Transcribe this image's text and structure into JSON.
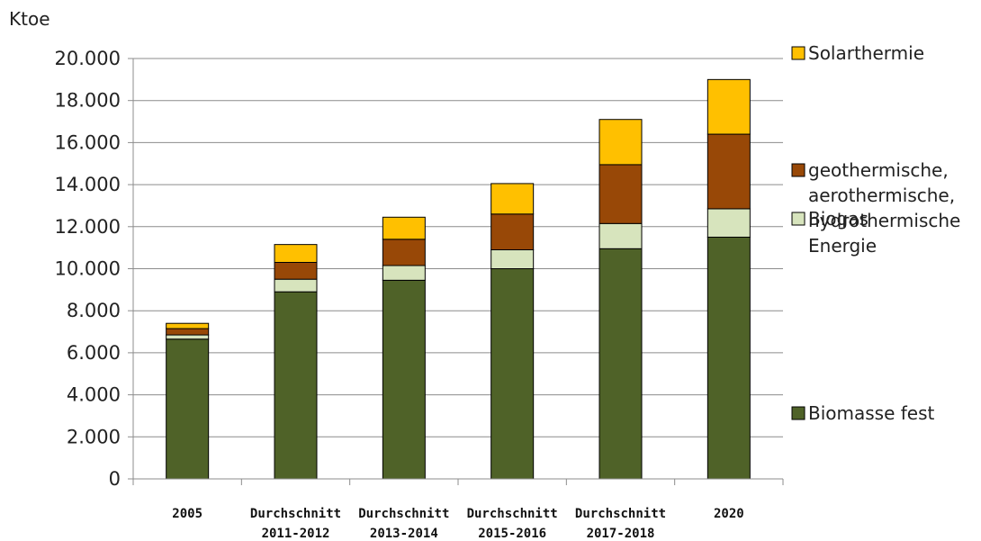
{
  "chart_data": {
    "type": "bar",
    "stacked": true,
    "unit_label": "Ktoe",
    "categories": [
      [
        "2005"
      ],
      [
        "Durchschnitt",
        "2011-2012"
      ],
      [
        "Durchschnitt",
        "2013-2014"
      ],
      [
        "Durchschnitt",
        "2015-2016"
      ],
      [
        "Durchschnitt",
        "2017-2018"
      ],
      [
        "2020"
      ]
    ],
    "ylim": [
      0,
      20000
    ],
    "yticks": [
      0,
      2000,
      4000,
      6000,
      8000,
      10000,
      12000,
      14000,
      16000,
      18000,
      20000
    ],
    "ytick_labels": [
      "0",
      "2.000",
      "4.000",
      "6.000",
      "8.000",
      "10.000",
      "12.000",
      "14.000",
      "16.000",
      "18.000",
      "20.000"
    ],
    "grid": true,
    "legend_position": "right",
    "series": [
      {
        "name": "Biomasse fest",
        "color": "#4f6228",
        "values": [
          6650,
          8900,
          9450,
          10000,
          10950,
          11500
        ]
      },
      {
        "name": "Biogas",
        "color": "#d7e4bd",
        "values": [
          200,
          600,
          700,
          900,
          1200,
          1350
        ]
      },
      {
        "name": "geothermische, aerothermische, hydrothermische Energie",
        "color": "#984807",
        "values": [
          300,
          800,
          1250,
          1700,
          2800,
          3550
        ]
      },
      {
        "name": "Solarthermie",
        "color": "#ffc000",
        "values": [
          250,
          850,
          1050,
          1450,
          2150,
          2600
        ]
      }
    ],
    "legend": [
      {
        "series": 3,
        "lines": [
          "Solarthermie"
        ]
      },
      {
        "series": 2,
        "lines": [
          "geothermische,",
          "aerothermische,",
          "hydrothermische",
          "Energie"
        ]
      },
      {
        "series": 1,
        "lines": [
          "Biogas"
        ]
      },
      {
        "series": 0,
        "lines": [
          "Biomasse fest"
        ]
      }
    ]
  }
}
